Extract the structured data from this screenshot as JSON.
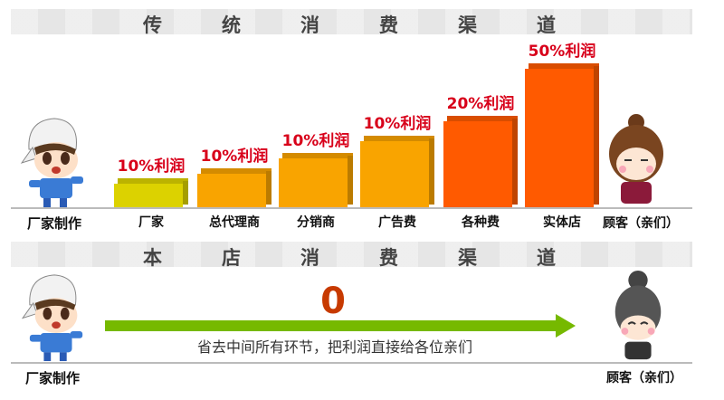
{
  "traditional": {
    "title_chars": [
      "传",
      "统",
      "消",
      "费",
      "渠",
      "道"
    ],
    "start_label": "厂家制作",
    "end_label": "顾客（亲们）",
    "stages": [
      {
        "label": "厂家",
        "profit": "10%利润",
        "level": 1,
        "color": "#dcd200"
      },
      {
        "label": "总代理商",
        "profit": "10%利润",
        "level": 2,
        "color": "#f9a400"
      },
      {
        "label": "分销商",
        "profit": "10%利润",
        "level": 3,
        "color": "#f9a400"
      },
      {
        "label": "广告费",
        "profit": "10%利润",
        "level": 4,
        "color": "#f9a400"
      },
      {
        "label": "各种费",
        "profit": "20%利润",
        "level": 5,
        "color": "#ff5a00"
      },
      {
        "label": "实体店",
        "profit": "50%利润",
        "level": 6,
        "color": "#ff5a00"
      }
    ]
  },
  "our_store": {
    "title_chars": [
      "本",
      "店",
      "消",
      "费",
      "渠",
      "道"
    ],
    "middleman_count": "0",
    "slogan": "省去中间所有环节，把利润直接给各位亲们",
    "start_label": "厂家制作",
    "end_label": "顾客（亲们）",
    "arrow_color": "#76b900"
  }
}
